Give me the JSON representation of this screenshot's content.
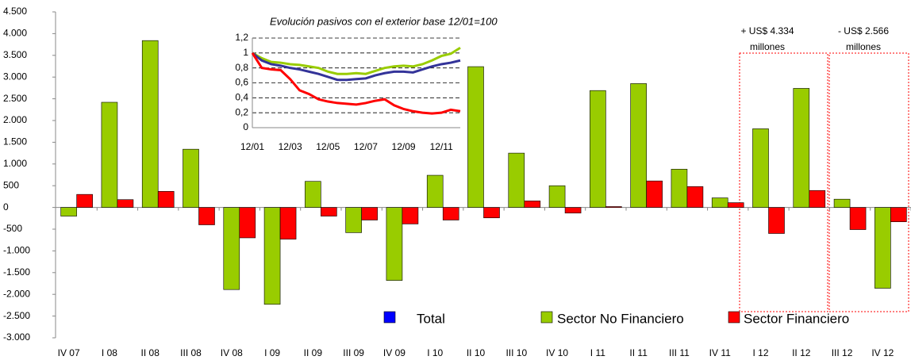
{
  "chart_data": [
    {
      "type": "bar",
      "categories": [
        "IV 07",
        "I 08",
        "II 08",
        "III 08",
        "IV 08",
        "I 09",
        "II 09",
        "III 09",
        "IV 09",
        "I 10",
        "II 10",
        "III 10",
        "IV 10",
        "I 11",
        "II 11",
        "III 11",
        "IV 11",
        "I 12",
        "II 12",
        "III 12",
        "IV 12"
      ],
      "series": [
        {
          "name": "Total",
          "color": "#0000ff",
          "values": [
            null,
            null,
            null,
            null,
            null,
            null,
            null,
            null,
            null,
            null,
            null,
            null,
            null,
            null,
            null,
            null,
            null,
            null,
            null,
            null,
            null
          ]
        },
        {
          "name": "Sector No Financiero",
          "color": "#99cc00",
          "values": [
            -200,
            2420,
            3840,
            1340,
            -1890,
            -2230,
            600,
            -580,
            -1680,
            740,
            3240,
            1250,
            500,
            2690,
            2850,
            880,
            220,
            1810,
            2740,
            190,
            -1860
          ]
        },
        {
          "name": "Sector Financiero",
          "color": "#ff0000",
          "values": [
            300,
            180,
            370,
            -400,
            -700,
            -730,
            -200,
            -290,
            -380,
            -290,
            -240,
            150,
            -130,
            20,
            610,
            480,
            110,
            -600,
            390,
            -510,
            -330
          ]
        }
      ],
      "ylim": [
        -3000,
        4500
      ],
      "yticks": [
        {
          "value": -3000,
          "label": "-3.000"
        },
        {
          "value": -2500,
          "label": "-2.500"
        },
        {
          "value": -2000,
          "label": "-2.000"
        },
        {
          "value": -1500,
          "label": "-1.500"
        },
        {
          "value": -1000,
          "label": "-1.000"
        },
        -500,
        0,
        500,
        {
          "value": 1000,
          "label": "1.000"
        },
        {
          "value": 1500,
          "label": "1.500"
        },
        {
          "value": 2000,
          "label": "2.000"
        },
        {
          "value": 2500,
          "label": "2.500"
        },
        {
          "value": 3000,
          "label": "3.000"
        },
        {
          "value": 3500,
          "label": "3.500"
        },
        {
          "value": 4000,
          "label": "4.000"
        },
        {
          "value": 4500,
          "label": "4.500"
        }
      ],
      "legend": "bottom",
      "annotations": [
        [
          "+ US$ 4.334",
          "millones"
        ],
        [
          "- US$ 2.566",
          "millones"
        ]
      ]
    },
    {
      "type": "line",
      "title": "Evolución pasivos con el exterior base 12/01=100",
      "categories": [
        "12/01",
        null,
        null,
        null,
        "12/03",
        null,
        null,
        null,
        "12/05",
        null,
        null,
        null,
        "12/07",
        null,
        null,
        null,
        "12/09",
        null,
        null,
        null,
        "12/11",
        null,
        null
      ],
      "series": [
        {
          "color": "#99cc00",
          "values": [
            1,
            0.93,
            0.88,
            0.87,
            0.85,
            0.84,
            0.82,
            0.8,
            0.75,
            0.72,
            0.72,
            0.73,
            0.72,
            0.76,
            0.8,
            0.82,
            0.83,
            0.82,
            0.85,
            0.9,
            0.96,
            0.99,
            1.07
          ]
        },
        {
          "color": "#333399",
          "values": [
            1,
            0.9,
            0.85,
            0.83,
            0.8,
            0.78,
            0.75,
            0.72,
            0.68,
            0.64,
            0.64,
            0.65,
            0.66,
            0.7,
            0.73,
            0.75,
            0.75,
            0.74,
            0.78,
            0.82,
            0.85,
            0.87,
            0.9
          ]
        },
        {
          "color": "#ff0000",
          "values": [
            1,
            0.8,
            0.78,
            0.77,
            0.65,
            0.5,
            0.45,
            0.38,
            0.35,
            0.33,
            0.32,
            0.31,
            0.33,
            0.36,
            0.38,
            0.3,
            0.25,
            0.22,
            0.2,
            0.19,
            0.2,
            0.24,
            0.22
          ]
        }
      ],
      "ylim": [
        0,
        1.2
      ],
      "yticks": [
        0,
        {
          "value": 0.2,
          "label": "0,2"
        },
        {
          "value": 0.4,
          "label": "0,4"
        },
        {
          "value": 0.6,
          "label": "0,6"
        },
        {
          "value": 0.8,
          "label": "0,8"
        },
        1,
        {
          "value": 1.2,
          "label": "1,2"
        }
      ],
      "grid": true
    }
  ]
}
